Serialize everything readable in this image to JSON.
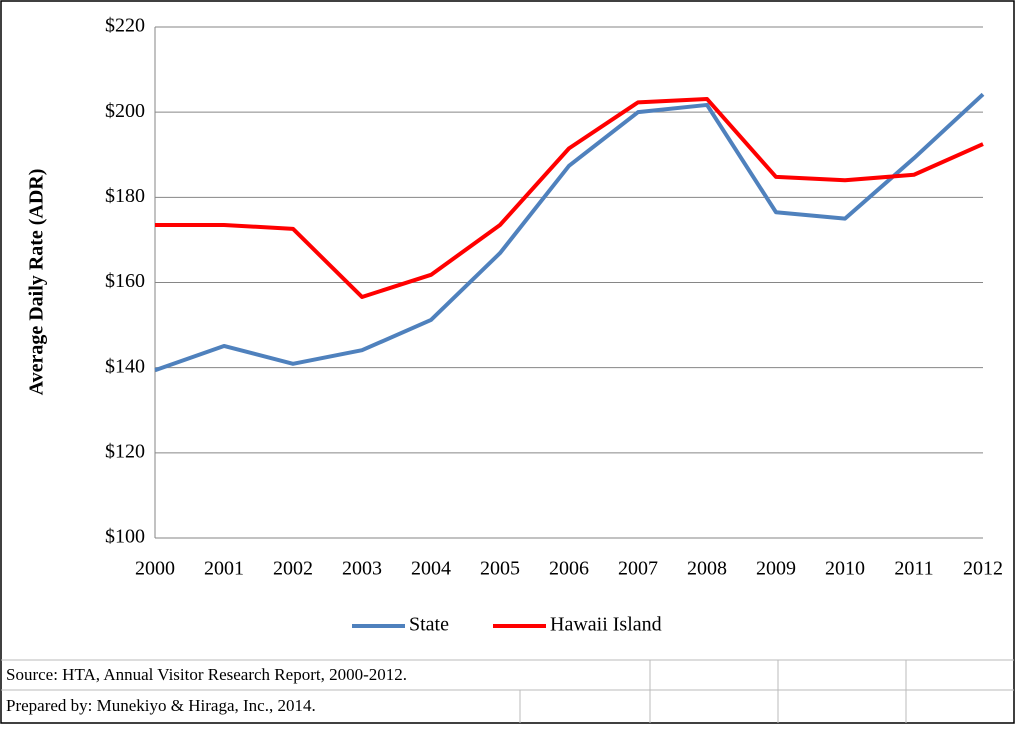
{
  "chart_data": {
    "type": "line",
    "ylabel": "Average  Daily Rate  (ADR)",
    "categories": [
      "2000",
      "2001",
      "2002",
      "2003",
      "2004",
      "2005",
      "2006",
      "2007",
      "2008",
      "2009",
      "2010",
      "2011",
      "2012"
    ],
    "series": [
      {
        "name": "State",
        "color": "#4f81bd",
        "values": [
          139.4,
          145.1,
          140.9,
          144.1,
          151.2,
          166.9,
          187.4,
          200.0,
          201.7,
          176.5,
          175.0,
          189.2,
          204.2
        ]
      },
      {
        "name": "Hawaii Island",
        "color": "#ff0000",
        "values": [
          173.5,
          173.5,
          172.6,
          156.6,
          161.8,
          173.5,
          191.5,
          202.3,
          203.1,
          184.8,
          184.0,
          185.3,
          192.5
        ]
      }
    ],
    "ylim": [
      100,
      220
    ],
    "yticks": [
      {
        "value": 100,
        "label": "$100"
      },
      {
        "value": 120,
        "label": "$120"
      },
      {
        "value": 140,
        "label": "$140"
      },
      {
        "value": 160,
        "label": "$160"
      },
      {
        "value": 180,
        "label": "$180"
      },
      {
        "value": 200,
        "label": "$200"
      },
      {
        "value": 220,
        "label": "$220"
      }
    ],
    "grid": true,
    "legend": "bottom"
  },
  "footer": {
    "source": "Source: HTA, Annual Visitor Research Report, 2000-2012.",
    "prepared": "Prepared by: Munekiyo & Hiraga, Inc., 2014."
  }
}
